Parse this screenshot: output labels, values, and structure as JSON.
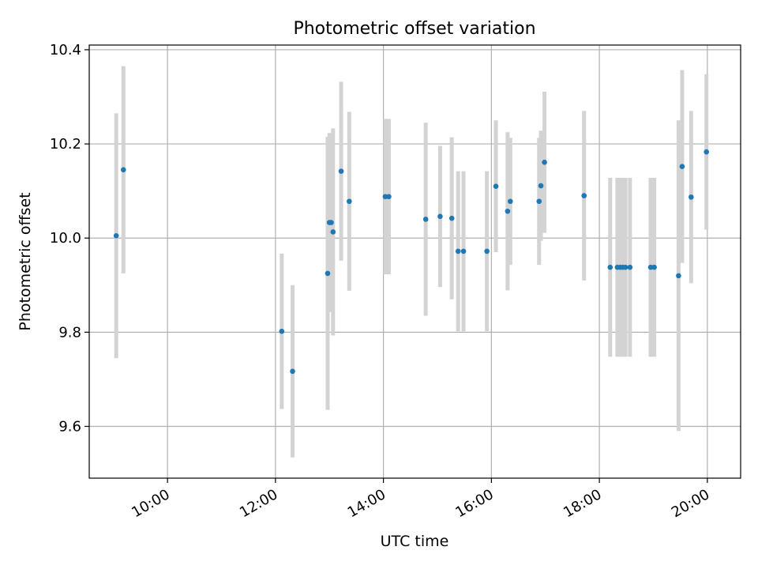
{
  "chart_data": {
    "type": "scatter",
    "title": "Photometric offset variation",
    "xlabel": "UTC time",
    "ylabel": "Photometric offset",
    "x_ticks": [
      "10:00",
      "12:00",
      "14:00",
      "16:00",
      "18:00",
      "20:00"
    ],
    "y_ticks": [
      "9.6",
      "9.8",
      "10.0",
      "10.2",
      "10.4"
    ],
    "xlim": [
      "08:33",
      "20:37"
    ],
    "ylim": [
      9.49,
      10.41
    ],
    "grid": true,
    "colors": {
      "marker": "#1f77b4",
      "errorbar": "#d3d3d3",
      "grid": "#b0b0b0",
      "axis": "#000000"
    },
    "series": [
      {
        "points": [
          {
            "time": "09:03",
            "y": 10.005,
            "yerr": 0.26
          },
          {
            "time": "09:11",
            "y": 10.145,
            "yerr": 0.22
          },
          {
            "time": "12:07",
            "y": 9.802,
            "yerr": 0.165
          },
          {
            "time": "12:19",
            "y": 9.717,
            "yerr": 0.183
          },
          {
            "time": "12:58",
            "y": 9.925,
            "yerr": 0.29
          },
          {
            "time": "13:00",
            "y": 10.033,
            "yerr": 0.19
          },
          {
            "time": "13:02",
            "y": 10.033,
            "yerr": 0.19
          },
          {
            "time": "13:04",
            "y": 10.013,
            "yerr": 0.22
          },
          {
            "time": "13:13",
            "y": 10.142,
            "yerr": 0.19
          },
          {
            "time": "13:22",
            "y": 10.078,
            "yerr": 0.19
          },
          {
            "time": "14:02",
            "y": 10.088,
            "yerr": 0.165
          },
          {
            "time": "14:06",
            "y": 10.088,
            "yerr": 0.165
          },
          {
            "time": "14:47",
            "y": 10.04,
            "yerr": 0.205
          },
          {
            "time": "15:03",
            "y": 10.046,
            "yerr": 0.15
          },
          {
            "time": "15:16",
            "y": 10.042,
            "yerr": 0.172
          },
          {
            "time": "15:23",
            "y": 9.972,
            "yerr": 0.17
          },
          {
            "time": "15:29",
            "y": 9.972,
            "yerr": 0.17
          },
          {
            "time": "15:55",
            "y": 9.972,
            "yerr": 0.17
          },
          {
            "time": "16:05",
            "y": 10.11,
            "yerr": 0.14
          },
          {
            "time": "16:18",
            "y": 10.057,
            "yerr": 0.168
          },
          {
            "time": "16:21",
            "y": 10.078,
            "yerr": 0.135
          },
          {
            "time": "16:53",
            "y": 10.078,
            "yerr": 0.135
          },
          {
            "time": "16:55",
            "y": 10.111,
            "yerr": 0.117
          },
          {
            "time": "16:59",
            "y": 10.161,
            "yerr": 0.15
          },
          {
            "time": "17:43",
            "y": 10.09,
            "yerr": 0.18
          },
          {
            "time": "18:12",
            "y": 9.938,
            "yerr": 0.19
          },
          {
            "time": "18:20",
            "y": 9.938,
            "yerr": 0.19
          },
          {
            "time": "18:23",
            "y": 9.938,
            "yerr": 0.19
          },
          {
            "time": "18:26",
            "y": 9.938,
            "yerr": 0.19
          },
          {
            "time": "18:29",
            "y": 9.938,
            "yerr": 0.19
          },
          {
            "time": "18:34",
            "y": 9.938,
            "yerr": 0.19
          },
          {
            "time": "18:57",
            "y": 9.938,
            "yerr": 0.19
          },
          {
            "time": "19:01",
            "y": 9.938,
            "yerr": 0.19
          },
          {
            "time": "19:28",
            "y": 9.92,
            "yerr": 0.33
          },
          {
            "time": "19:32",
            "y": 10.152,
            "yerr": 0.205
          },
          {
            "time": "19:42",
            "y": 10.087,
            "yerr": 0.183
          },
          {
            "time": "19:59",
            "y": 10.183,
            "yerr": 0.165
          }
        ]
      }
    ]
  }
}
